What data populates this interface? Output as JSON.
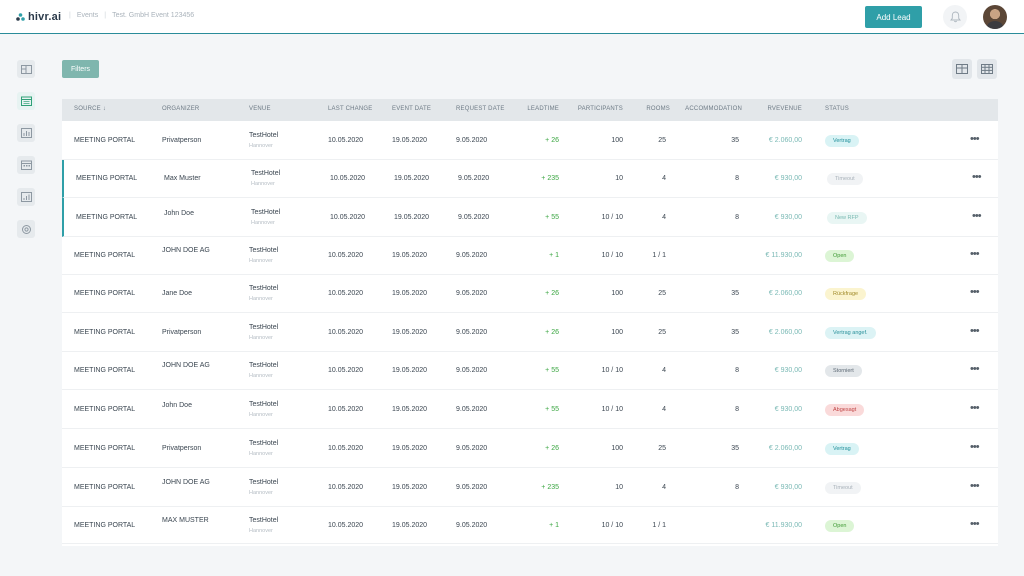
{
  "header": {
    "logo_text": "hivr.ai",
    "breadcrumbs": [
      "Events",
      "Test. GmbH Event 123456"
    ],
    "add_lead_label": "Add Lead",
    "icons": {
      "bell": "bell-icon",
      "avatar": "user-avatar"
    }
  },
  "sidebar": {
    "icons": [
      "layout-icon",
      "calendar-list-icon",
      "bar-chart-icon",
      "calendar-icon",
      "stats-icon",
      "settings-icon"
    ],
    "active_index": 1
  },
  "toolbar": {
    "filters_label": "Filters",
    "view_icons": [
      "split-view-icon",
      "table-view-icon"
    ]
  },
  "table": {
    "columns": [
      "SOURCE ↓",
      "ORGANIZER",
      "VENUE",
      "LAST CHANGE",
      "EVENT DATE",
      "REQUEST DATE",
      "LEADTIME",
      "PARTICIPANTS",
      "ROOMS",
      "ACCOMMODATION",
      "RVEVENUE",
      "STATUS"
    ],
    "rows": [
      {
        "source": "MEETING PORTAL",
        "organizer": "Privatperson",
        "venue": "TestHotel",
        "venue_city": "Hannover",
        "last_change": "10.05.2020",
        "event_date": "19.05.2020",
        "request_date": "9.05.2020",
        "leadtime": "+ 26",
        "participants": "100",
        "rooms": "25",
        "accommodation": "35",
        "revenue": "€ 2.060,00",
        "status": "Vertrag",
        "status_color": "#d9f3f5",
        "status_text_color": "#1f8f9a",
        "highlight": false
      },
      {
        "source": "MEETING PORTAL",
        "organizer": "Max Muster",
        "venue": "TestHotel",
        "venue_city": "Hannover",
        "last_change": "10.05.2020",
        "event_date": "19.05.2020",
        "request_date": "9.05.2020",
        "leadtime": "+ 235",
        "participants": "10",
        "rooms": "4",
        "accommodation": "8",
        "revenue": "€ 930,00",
        "status": "Timeout",
        "status_color": "#f1f3f5",
        "status_text_color": "#a8b1b9",
        "highlight": true
      },
      {
        "source": "MEETING PORTAL",
        "organizer": "John Doe",
        "venue": "TestHotel",
        "venue_city": "Hannover",
        "last_change": "10.05.2020",
        "event_date": "19.05.2020",
        "request_date": "9.05.2020",
        "leadtime": "+ 55",
        "participants": "10 / 10",
        "rooms": "4",
        "accommodation": "8",
        "revenue": "€ 930,00",
        "status": "New RFP",
        "status_color": "#e9f6f4",
        "status_text_color": "#76b8b0",
        "highlight": true
      },
      {
        "source": "MEETING PORTAL",
        "organizer": "JOHN DOE AG",
        "venue": "TestHotel",
        "venue_city": "Hannover",
        "last_change": "10.05.2020",
        "event_date": "19.05.2020",
        "request_date": "9.05.2020",
        "leadtime": "+ 1",
        "participants": "10 / 10",
        "rooms": "1 / 1",
        "accommodation": "",
        "revenue": "€ 11.930,00",
        "status": "Open",
        "status_color": "#dcf5d5",
        "status_text_color": "#3f9a35",
        "highlight": false
      },
      {
        "source": "MEETING PORTAL",
        "organizer": "Jane Doe",
        "venue": "TestHotel",
        "venue_city": "Hannover",
        "last_change": "10.05.2020",
        "event_date": "19.05.2020",
        "request_date": "9.05.2020",
        "leadtime": "+ 26",
        "participants": "100",
        "rooms": "25",
        "accommodation": "35",
        "revenue": "€ 2.060,00",
        "status": "Rückfrage",
        "status_color": "#fbf4cf",
        "status_text_color": "#a08a2a",
        "highlight": false
      },
      {
        "source": "MEETING PORTAL",
        "organizer": "Privatperson",
        "venue": "TestHotel",
        "venue_city": "Hannover",
        "last_change": "10.05.2020",
        "event_date": "19.05.2020",
        "request_date": "9.05.2020",
        "leadtime": "+ 26",
        "participants": "100",
        "rooms": "25",
        "accommodation": "35",
        "revenue": "€ 2.060,00",
        "status": "Vertrag angef.",
        "status_color": "#dcf3f5",
        "status_text_color": "#2b919b",
        "highlight": false
      },
      {
        "source": "MEETING PORTAL",
        "organizer": "JOHN DOE AG",
        "venue": "TestHotel",
        "venue_city": "Hannover",
        "last_change": "10.05.2020",
        "event_date": "19.05.2020",
        "request_date": "9.05.2020",
        "leadtime": "+ 55",
        "participants": "10 / 10",
        "rooms": "4",
        "accommodation": "8",
        "revenue": "€ 930,00",
        "status": "Storniert",
        "status_color": "#e3e7ea",
        "status_text_color": "#5c6873",
        "highlight": false
      },
      {
        "source": "MEETING PORTAL",
        "organizer": "John Doe",
        "venue": "TestHotel",
        "venue_city": "Hannover",
        "last_change": "10.05.2020",
        "event_date": "19.05.2020",
        "request_date": "9.05.2020",
        "leadtime": "+ 55",
        "participants": "10 / 10",
        "rooms": "4",
        "accommodation": "8",
        "revenue": "€ 930,00",
        "status": "Abgesagt",
        "status_color": "#fadada",
        "status_text_color": "#c04545",
        "highlight": false
      },
      {
        "source": "MEETING PORTAL",
        "organizer": "Privatperson",
        "venue": "TestHotel",
        "venue_city": "Hannover",
        "last_change": "10.05.2020",
        "event_date": "19.05.2020",
        "request_date": "9.05.2020",
        "leadtime": "+ 26",
        "participants": "100",
        "rooms": "25",
        "accommodation": "35",
        "revenue": "€ 2.060,00",
        "status": "Vertrag",
        "status_color": "#d9f3f5",
        "status_text_color": "#1f8f9a",
        "highlight": false
      },
      {
        "source": "MEETING PORTAL",
        "organizer": "JOHN DOE AG",
        "venue": "TestHotel",
        "venue_city": "Hannover",
        "last_change": "10.05.2020",
        "event_date": "19.05.2020",
        "request_date": "9.05.2020",
        "leadtime": "+ 235",
        "participants": "10",
        "rooms": "4",
        "accommodation": "8",
        "revenue": "€ 930,00",
        "status": "Timeout",
        "status_color": "#f1f3f5",
        "status_text_color": "#a8b1b9",
        "highlight": false
      },
      {
        "source": "MEETING PORTAL",
        "organizer": "MAX MUSTER",
        "venue": "TestHotel",
        "venue_city": "Hannover",
        "last_change": "10.05.2020",
        "event_date": "19.05.2020",
        "request_date": "9.05.2020",
        "leadtime": "+ 1",
        "participants": "10 / 10",
        "rooms": "1 / 1",
        "accommodation": "",
        "revenue": "€ 11.930,00",
        "status": "Open",
        "status_color": "#dcf5d5",
        "status_text_color": "#3f9a35",
        "highlight": false
      }
    ]
  },
  "colors": {
    "accent": "#2f9fa8",
    "leadtime": "#3aa641",
    "revenue": "#7ab9b5"
  }
}
